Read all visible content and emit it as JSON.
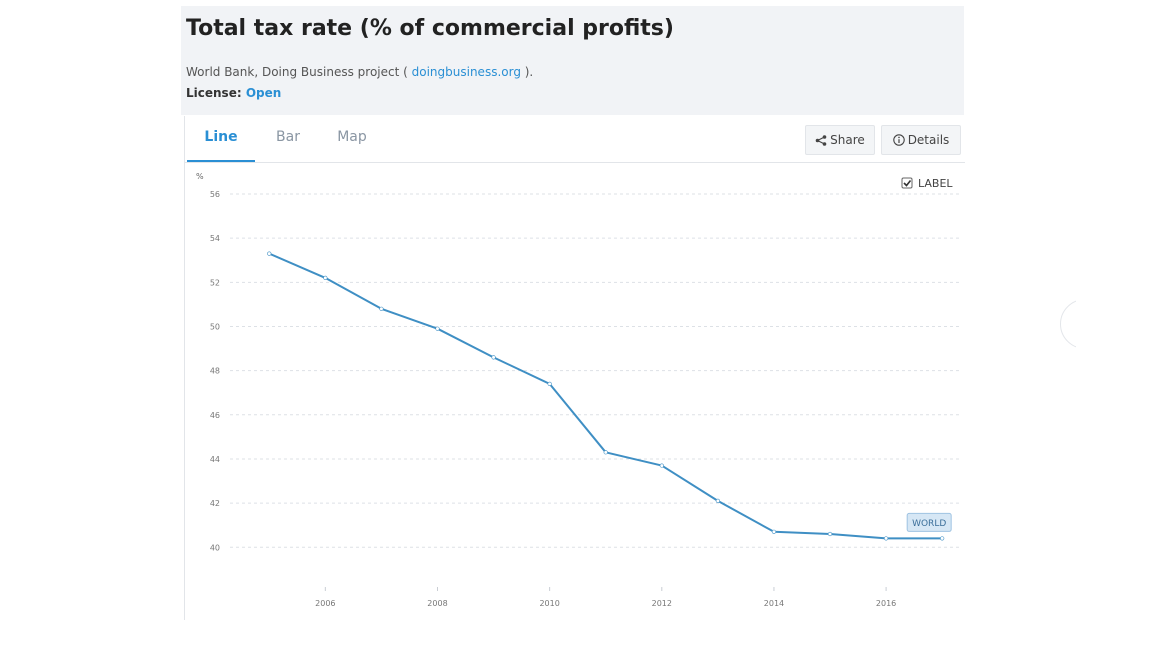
{
  "header": {
    "title": "Total tax rate (% of commercial profits)",
    "source_prefix": "World Bank, Doing Business project ( ",
    "source_link": "doingbusiness.org",
    "source_suffix": " ).",
    "license_label": "License: ",
    "license_value": "Open"
  },
  "tabs": [
    {
      "label": "Line",
      "active": true
    },
    {
      "label": "Bar",
      "active": false
    },
    {
      "label": "Map",
      "active": false
    }
  ],
  "actions": {
    "share_label": "Share",
    "share_icon": "share-icon",
    "details_label": "Details",
    "details_icon": "info-icon"
  },
  "label_toggle": {
    "label": "LABEL",
    "checked": true
  },
  "colors": {
    "accent": "#2a8fd4",
    "line": "#3f8fc4"
  },
  "chart_data": {
    "type": "line",
    "title": "",
    "xlabel": "",
    "ylabel": "%",
    "x": [
      2005,
      2006,
      2007,
      2008,
      2009,
      2010,
      2011,
      2012,
      2013,
      2014,
      2015,
      2016,
      2017
    ],
    "series": [
      {
        "name": "WORLD",
        "values": [
          53.3,
          52.2,
          50.8,
          49.9,
          48.6,
          47.4,
          44.3,
          43.7,
          42.1,
          40.7,
          40.6,
          40.4,
          40.4
        ]
      }
    ],
    "xlim": [
      2004.3,
      2017.3
    ],
    "ylim": [
      38.2,
      56
    ],
    "x_ticks": [
      2006,
      2008,
      2010,
      2012,
      2014,
      2016
    ],
    "y_ticks": [
      40,
      42,
      44,
      46,
      48,
      50,
      52,
      54,
      56
    ],
    "grid": true
  }
}
